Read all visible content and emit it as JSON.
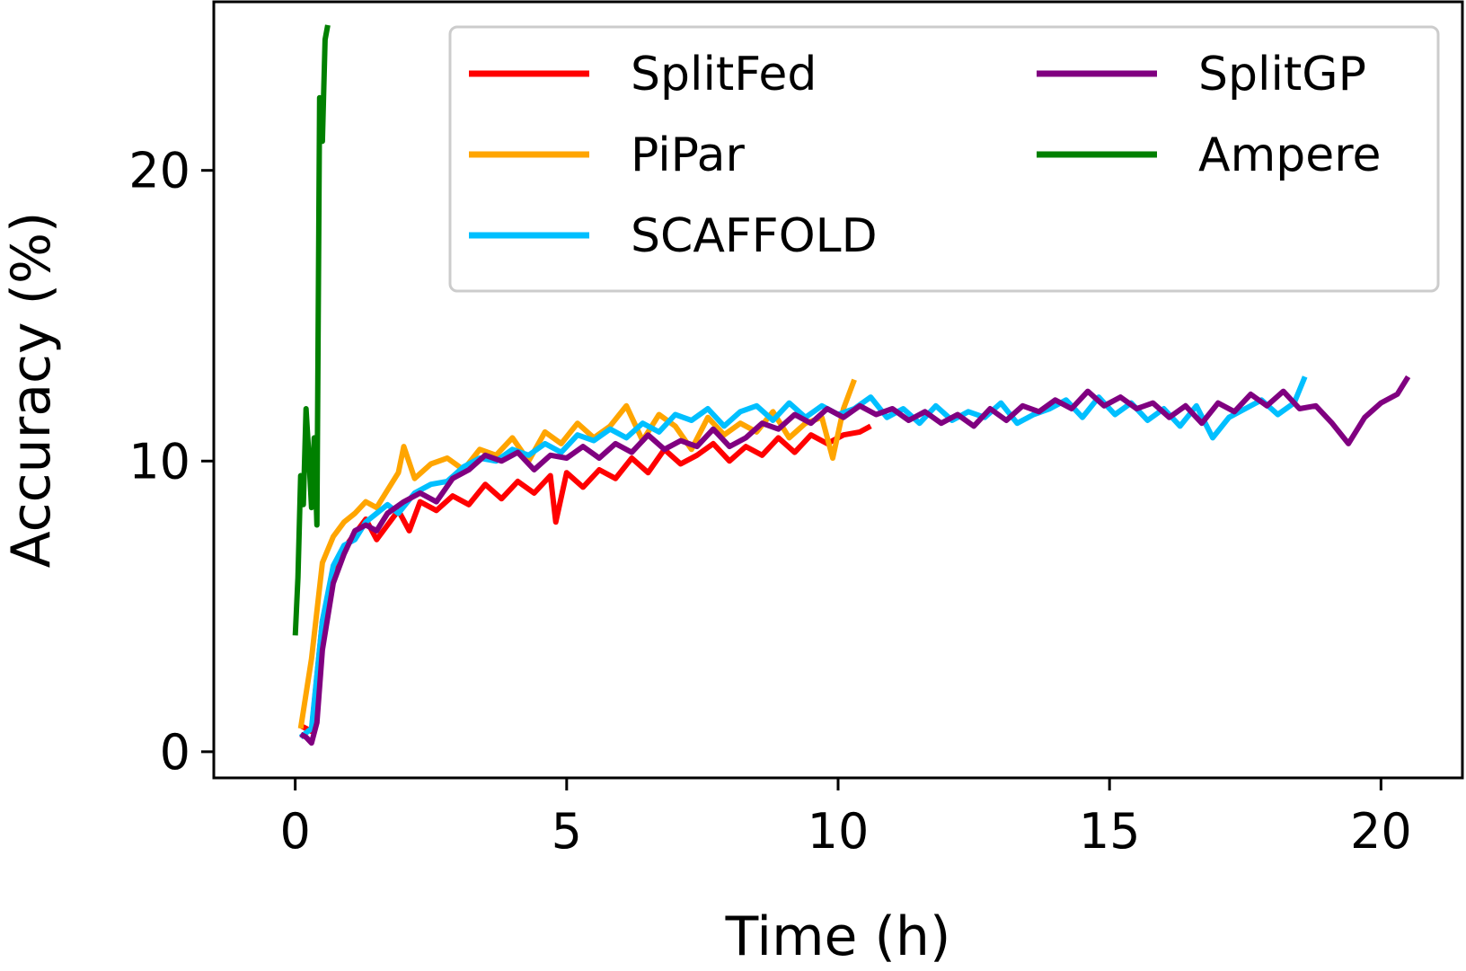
{
  "chart_data": {
    "type": "line",
    "title": "",
    "xlabel": "Time (h)",
    "ylabel": "Accuracy (%)",
    "xlim": [
      -1.5,
      21.5
    ],
    "ylim": [
      -0.9,
      25.8
    ],
    "xticks": [
      0,
      5,
      10,
      15,
      20
    ],
    "yticks": [
      0,
      10,
      20
    ],
    "grid": false,
    "legend": {
      "position": "top-right",
      "columns": 2
    },
    "series": [
      {
        "name": "SplitFed",
        "color": "#ff0000",
        "x": [
          0.1,
          0.3,
          0.5,
          0.7,
          0.9,
          1.1,
          1.3,
          1.5,
          1.7,
          1.9,
          2.1,
          2.3,
          2.6,
          2.9,
          3.2,
          3.5,
          3.8,
          4.1,
          4.4,
          4.7,
          4.8,
          5.0,
          5.3,
          5.6,
          5.9,
          6.2,
          6.5,
          6.8,
          7.1,
          7.4,
          7.7,
          8.0,
          8.3,
          8.6,
          8.9,
          9.2,
          9.5,
          9.8,
          10.1,
          10.4,
          10.6
        ],
        "y": [
          0.9,
          0.7,
          4.5,
          6.2,
          7.0,
          7.5,
          8.0,
          7.3,
          7.8,
          8.3,
          7.6,
          8.6,
          8.3,
          8.8,
          8.5,
          9.2,
          8.7,
          9.3,
          8.9,
          9.5,
          7.9,
          9.6,
          9.1,
          9.7,
          9.4,
          10.1,
          9.6,
          10.4,
          9.9,
          10.2,
          10.6,
          10.0,
          10.5,
          10.2,
          10.8,
          10.3,
          10.9,
          10.6,
          10.9,
          11.0,
          11.2
        ]
      },
      {
        "name": "PiPar",
        "color": "#ffa500",
        "x": [
          0.1,
          0.3,
          0.5,
          0.7,
          0.9,
          1.1,
          1.3,
          1.5,
          1.7,
          1.9,
          2.0,
          2.2,
          2.5,
          2.8,
          3.1,
          3.4,
          3.7,
          4.0,
          4.3,
          4.6,
          4.9,
          5.2,
          5.5,
          5.8,
          6.1,
          6.4,
          6.7,
          7.0,
          7.3,
          7.6,
          7.9,
          8.2,
          8.5,
          8.8,
          9.1,
          9.4,
          9.7,
          9.9,
          10.1,
          10.3
        ],
        "y": [
          0.8,
          3.2,
          6.5,
          7.4,
          7.9,
          8.2,
          8.6,
          8.4,
          9.0,
          9.6,
          10.5,
          9.4,
          9.9,
          10.1,
          9.7,
          10.4,
          10.2,
          10.8,
          10.0,
          11.0,
          10.6,
          11.3,
          10.8,
          11.2,
          11.9,
          10.7,
          11.6,
          11.2,
          10.4,
          11.5,
          10.9,
          11.3,
          11.0,
          11.7,
          10.8,
          11.3,
          11.5,
          10.1,
          11.8,
          12.8
        ]
      },
      {
        "name": "SCAFFOLD",
        "color": "#00bfff",
        "x": [
          0.1,
          0.3,
          0.5,
          0.7,
          0.9,
          1.1,
          1.3,
          1.5,
          1.7,
          1.9,
          2.2,
          2.5,
          2.8,
          3.1,
          3.4,
          3.7,
          4.0,
          4.3,
          4.6,
          4.9,
          5.2,
          5.5,
          5.8,
          6.1,
          6.4,
          6.7,
          7.0,
          7.3,
          7.6,
          7.9,
          8.2,
          8.5,
          8.8,
          9.1,
          9.4,
          9.7,
          10.0,
          10.3,
          10.6,
          10.9,
          11.2,
          11.5,
          11.8,
          12.1,
          12.4,
          12.7,
          13.0,
          13.3,
          13.6,
          13.9,
          14.2,
          14.5,
          14.8,
          15.1,
          15.4,
          15.7,
          16.0,
          16.3,
          16.6,
          16.9,
          17.2,
          17.5,
          17.8,
          18.1,
          18.4,
          18.6
        ],
        "y": [
          0.5,
          0.8,
          4.5,
          6.4,
          7.1,
          7.3,
          7.9,
          8.2,
          8.5,
          8.2,
          8.9,
          9.2,
          9.3,
          9.8,
          10.1,
          10.0,
          10.4,
          10.2,
          10.6,
          10.3,
          10.9,
          10.7,
          11.1,
          10.8,
          11.3,
          11.0,
          11.6,
          11.4,
          11.8,
          11.2,
          11.7,
          11.9,
          11.4,
          12.0,
          11.5,
          11.9,
          11.6,
          11.8,
          12.2,
          11.5,
          11.8,
          11.3,
          11.9,
          11.4,
          11.7,
          11.5,
          12.0,
          11.3,
          11.6,
          11.8,
          12.1,
          11.5,
          12.2,
          11.6,
          12.0,
          11.4,
          11.8,
          11.2,
          11.9,
          10.8,
          11.5,
          11.8,
          12.1,
          11.6,
          12.0,
          12.9
        ]
      },
      {
        "name": "SplitGP",
        "color": "#800080",
        "x": [
          0.1,
          0.2,
          0.3,
          0.4,
          0.5,
          0.7,
          0.9,
          1.1,
          1.3,
          1.5,
          1.7,
          2.0,
          2.3,
          2.6,
          2.9,
          3.2,
          3.5,
          3.8,
          4.1,
          4.4,
          4.7,
          5.0,
          5.3,
          5.6,
          5.9,
          6.2,
          6.5,
          6.8,
          7.1,
          7.4,
          7.7,
          8.0,
          8.3,
          8.6,
          8.9,
          9.2,
          9.5,
          9.8,
          10.1,
          10.4,
          10.7,
          11.0,
          11.3,
          11.6,
          11.9,
          12.2,
          12.5,
          12.8,
          13.1,
          13.4,
          13.7,
          14.0,
          14.3,
          14.6,
          14.9,
          15.2,
          15.5,
          15.8,
          16.1,
          16.4,
          16.7,
          17.0,
          17.3,
          17.6,
          17.9,
          18.2,
          18.5,
          18.8,
          19.1,
          19.4,
          19.7,
          20.0,
          20.3,
          20.5
        ],
        "y": [
          0.6,
          0.5,
          0.3,
          1.0,
          3.5,
          5.8,
          6.8,
          7.6,
          7.8,
          7.6,
          8.2,
          8.6,
          8.9,
          8.6,
          9.4,
          9.7,
          10.2,
          10.0,
          10.3,
          9.7,
          10.2,
          10.1,
          10.5,
          10.1,
          10.6,
          10.3,
          10.9,
          10.4,
          10.7,
          10.5,
          11.1,
          10.5,
          10.8,
          11.3,
          11.1,
          11.6,
          11.3,
          11.8,
          11.5,
          11.9,
          11.6,
          11.8,
          11.4,
          11.7,
          11.3,
          11.6,
          11.2,
          11.8,
          11.4,
          11.9,
          11.7,
          12.1,
          11.8,
          12.4,
          11.9,
          12.2,
          11.8,
          12.0,
          11.5,
          11.9,
          11.3,
          12.0,
          11.7,
          12.3,
          11.9,
          12.4,
          11.8,
          11.9,
          11.3,
          10.6,
          11.5,
          12.0,
          12.3,
          12.9
        ]
      },
      {
        "name": "Ampere",
        "color": "#008000",
        "x": [
          0.0,
          0.05,
          0.1,
          0.15,
          0.2,
          0.25,
          0.3,
          0.35,
          0.4,
          0.45,
          0.5,
          0.55,
          0.6
        ],
        "y": [
          4.0,
          6.0,
          9.5,
          8.5,
          11.8,
          10.2,
          8.4,
          10.8,
          7.8,
          22.5,
          21.0,
          24.5,
          25.0
        ]
      }
    ]
  }
}
